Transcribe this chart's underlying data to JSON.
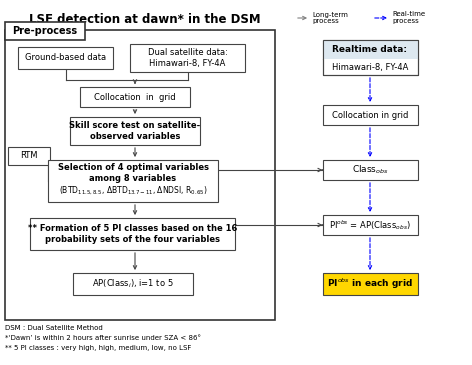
{
  "title": "LSF detection at dawn* in the DSM",
  "background_color": "#ffffff",
  "footnotes": [
    "DSM : Dual Satellite Method",
    "*‘Dawn’ is within 2 hours after sunrise under SZA < 86°",
    "** 5 PI classes : very high, high, medium, low, no LSF"
  ],
  "preprocess_label": "Pre-process"
}
